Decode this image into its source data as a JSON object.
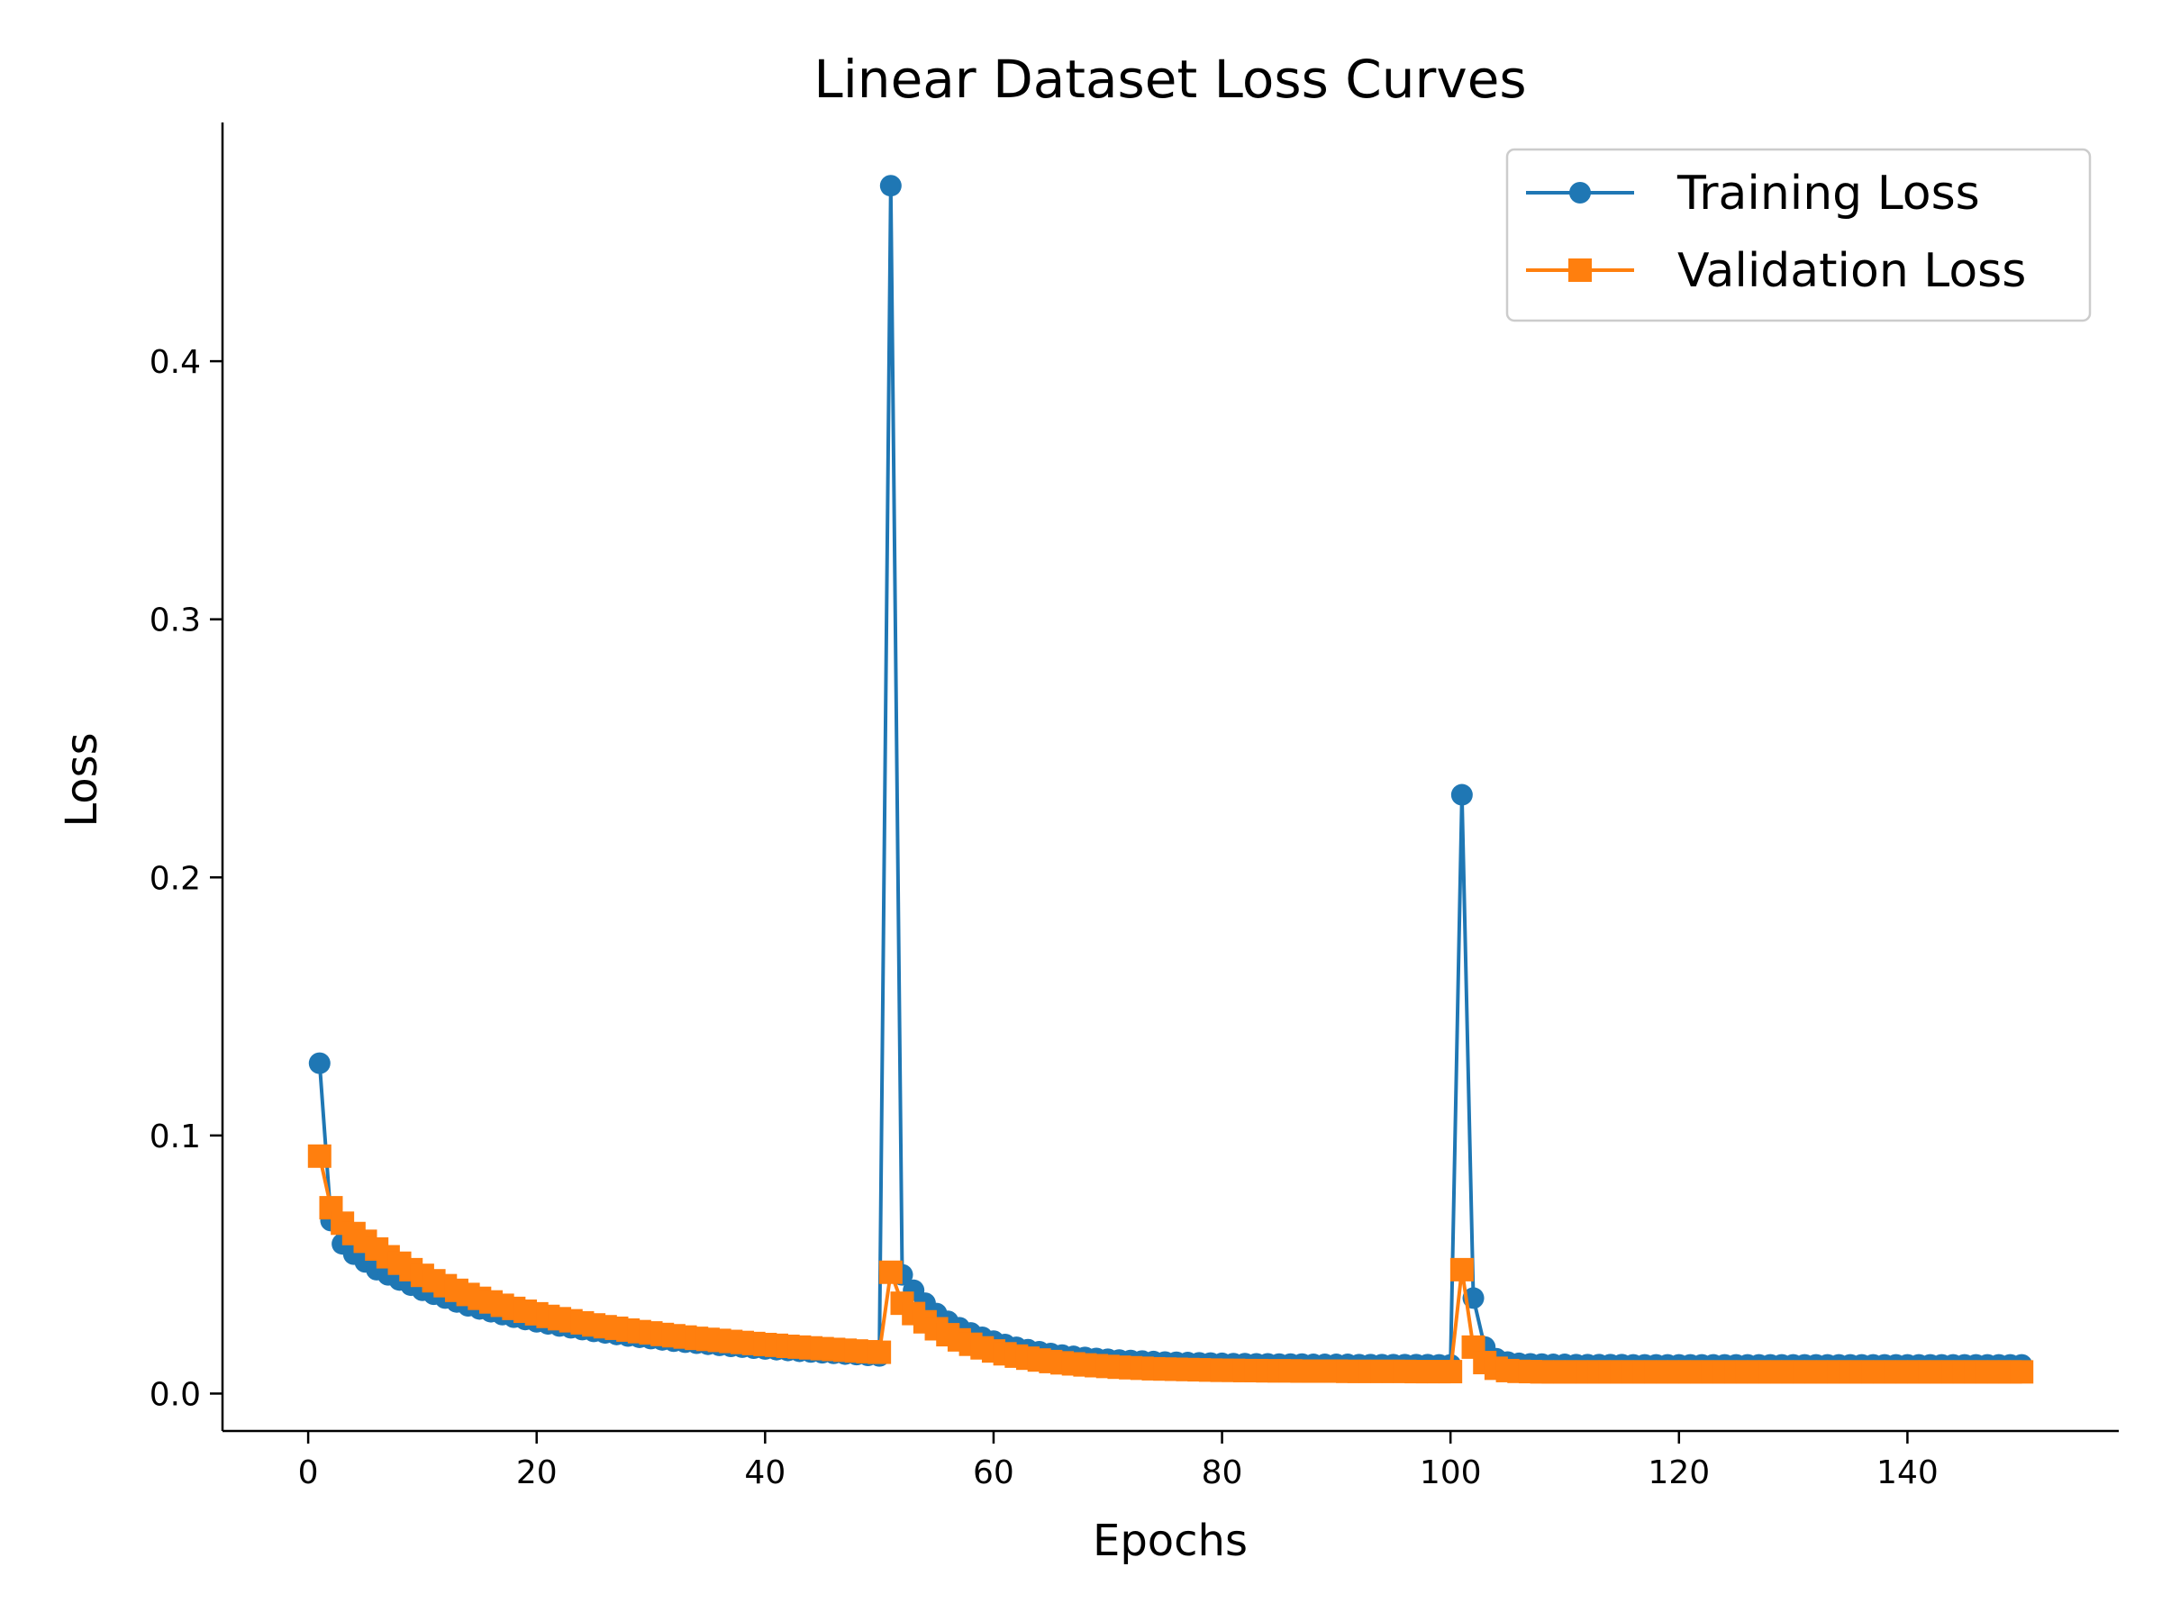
{
  "chart_data": {
    "type": "line",
    "title": "Linear Dataset Loss Curves",
    "xlabel": "Epochs",
    "ylabel": "Loss",
    "xlim": [
      -7.5,
      158.5
    ],
    "ylim": [
      -0.0145,
      0.4925
    ],
    "x_ticks": [
      0,
      20,
      40,
      60,
      80,
      100,
      120,
      140
    ],
    "y_ticks": [
      0.0,
      0.1,
      0.2,
      0.3,
      0.4
    ],
    "x_tick_labels": [
      "0",
      "20",
      "40",
      "60",
      "80",
      "100",
      "120",
      "140"
    ],
    "y_tick_labels": [
      "0.0",
      "0.1",
      "0.2",
      "0.3",
      "0.4"
    ],
    "grid": false,
    "legend_position": "top-right",
    "x_start": 1,
    "series": [
      {
        "name": "Training Loss",
        "color": "#1f77b4",
        "marker": "circle",
        "values": [
          0.128,
          0.067,
          0.058,
          0.054,
          0.051,
          0.048,
          0.046,
          0.044,
          0.042,
          0.04,
          0.0385,
          0.037,
          0.0355,
          0.034,
          0.0328,
          0.0317,
          0.0306,
          0.0296,
          0.0287,
          0.0278,
          0.027,
          0.0262,
          0.0255,
          0.0248,
          0.0241,
          0.0235,
          0.0229,
          0.0223,
          0.0218,
          0.0213,
          0.0208,
          0.0203,
          0.0199,
          0.0195,
          0.0191,
          0.0187,
          0.0183,
          0.018,
          0.0176,
          0.0173,
          0.017,
          0.0167,
          0.0164,
          0.0161,
          0.0158,
          0.0156,
          0.0153,
          0.0151,
          0.0148,
          0.0146,
          0.468,
          0.046,
          0.04,
          0.035,
          0.031,
          0.028,
          0.0255,
          0.0235,
          0.0218,
          0.0203,
          0.019,
          0.0179,
          0.017,
          0.0162,
          0.0155,
          0.0149,
          0.0144,
          0.014,
          0.0136,
          0.0133,
          0.013,
          0.0128,
          0.0126,
          0.0124,
          0.0122,
          0.0121,
          0.012,
          0.0119,
          0.0118,
          0.0117,
          0.0116,
          0.0116,
          0.0115,
          0.0115,
          0.0114,
          0.0114,
          0.0114,
          0.0113,
          0.0113,
          0.0113,
          0.0113,
          0.0112,
          0.0112,
          0.0112,
          0.0112,
          0.0112,
          0.0112,
          0.0112,
          0.0111,
          0.0111,
          0.232,
          0.037,
          0.018,
          0.0135,
          0.0122,
          0.0117,
          0.0115,
          0.0114,
          0.0113,
          0.0113,
          0.0112,
          0.0112,
          0.0112,
          0.0112,
          0.0112,
          0.0111,
          0.0111,
          0.0111,
          0.0111,
          0.0111,
          0.0111,
          0.0111,
          0.0111,
          0.0111,
          0.0111,
          0.0111,
          0.0111,
          0.0111,
          0.0111,
          0.0111,
          0.0111,
          0.0111,
          0.0111,
          0.0111,
          0.0111,
          0.0111,
          0.0111,
          0.0111,
          0.0111,
          0.0111,
          0.0111,
          0.0111,
          0.0111,
          0.0111,
          0.0111,
          0.0111,
          0.0111,
          0.0111,
          0.0111,
          0.0111
        ]
      },
      {
        "name": "Validation Loss",
        "color": "#ff7f0e",
        "marker": "square",
        "values": [
          0.092,
          0.072,
          0.066,
          0.062,
          0.059,
          0.056,
          0.053,
          0.0505,
          0.048,
          0.0458,
          0.0437,
          0.0418,
          0.04,
          0.0384,
          0.0369,
          0.0355,
          0.0342,
          0.033,
          0.0319,
          0.0309,
          0.0299,
          0.029,
          0.0282,
          0.0274,
          0.0266,
          0.0259,
          0.0253,
          0.0246,
          0.024,
          0.0235,
          0.0229,
          0.0224,
          0.0219,
          0.0214,
          0.021,
          0.0206,
          0.0202,
          0.0198,
          0.0194,
          0.019,
          0.0187,
          0.0183,
          0.018,
          0.0177,
          0.0174,
          0.0171,
          0.0168,
          0.0165,
          0.0162,
          0.016,
          0.047,
          0.035,
          0.031,
          0.0278,
          0.0251,
          0.0228,
          0.0208,
          0.0191,
          0.0177,
          0.0165,
          0.0154,
          0.0145,
          0.0137,
          0.013,
          0.0124,
          0.0119,
          0.0115,
          0.0111,
          0.0108,
          0.0105,
          0.0102,
          0.01,
          0.0098,
          0.0096,
          0.0095,
          0.0094,
          0.0093,
          0.0092,
          0.0091,
          0.009,
          0.009,
          0.0089,
          0.0089,
          0.0088,
          0.0088,
          0.0088,
          0.0087,
          0.0087,
          0.0087,
          0.0087,
          0.0086,
          0.0086,
          0.0086,
          0.0086,
          0.0086,
          0.0086,
          0.0085,
          0.0085,
          0.0085,
          0.0085,
          0.048,
          0.018,
          0.012,
          0.0098,
          0.0089,
          0.0086,
          0.0085,
          0.0084,
          0.0084,
          0.0084,
          0.0084,
          0.0084,
          0.0084,
          0.0084,
          0.0084,
          0.0084,
          0.0084,
          0.0084,
          0.0084,
          0.0084,
          0.0084,
          0.0084,
          0.0084,
          0.0084,
          0.0084,
          0.0084,
          0.0084,
          0.0084,
          0.0084,
          0.0084,
          0.0084,
          0.0084,
          0.0084,
          0.0084,
          0.0084,
          0.0084,
          0.0084,
          0.0084,
          0.0084,
          0.0084,
          0.0084,
          0.0084,
          0.0084,
          0.0084,
          0.0084,
          0.0084,
          0.0084,
          0.0084,
          0.0084,
          0.0084
        ]
      }
    ]
  }
}
